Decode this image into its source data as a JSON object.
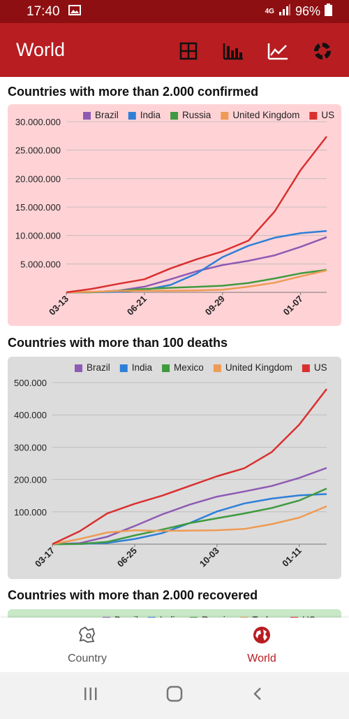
{
  "status": {
    "time": "17:40",
    "network": "4G",
    "battery": "96%"
  },
  "appbar": {
    "title": "World",
    "icons": [
      "table-icon",
      "bar-chart-icon",
      "line-chart-icon",
      "donut-chart-icon"
    ]
  },
  "sections": [
    {
      "title": "Countries with more than 2.000 confirmed"
    },
    {
      "title": "Countries with more than 100 deaths"
    },
    {
      "title": "Countries with more than 2.000 recovered"
    }
  ],
  "colors": {
    "Brazil": "#8e5bb4",
    "India": "#2f7fd8",
    "Russia": "#3f9a3f",
    "Mexico": "#3f9a3f",
    "United Kingdom": "#ee9b55",
    "Turkey": "#ee9b55",
    "US": "#d9302f",
    "card1_bg": "#ffd3d6",
    "card2_bg": "#dcdcdc",
    "card3_bg": "#c8e8c8"
  },
  "chart_data": [
    {
      "type": "line",
      "title": "Countries with more than 2.000 confirmed",
      "x_ticks": [
        "03-13",
        "06-21",
        "09-29",
        "01-07"
      ],
      "y_ticks": [
        "5.000.000",
        "10.000.000",
        "15.000.000",
        "20.000.000",
        "25.000.000",
        "30.000.000"
      ],
      "ylim": [
        0,
        30000000
      ],
      "x_points": [
        "03-13",
        "04-15",
        "05-18",
        "06-21",
        "07-24",
        "08-26",
        "09-29",
        "11-01",
        "12-04",
        "01-07",
        "01-28"
      ],
      "legend_position": "top",
      "series": [
        {
          "name": "Brazil",
          "values": [
            0,
            50000,
            300000,
            1000000,
            2300000,
            3700000,
            4800000,
            5550000,
            6500000,
            8000000,
            9700000
          ]
        },
        {
          "name": "India",
          "values": [
            0,
            10000,
            100000,
            420000,
            1300000,
            3300000,
            6200000,
            8200000,
            9600000,
            10400000,
            10800000
          ]
        },
        {
          "name": "Russia",
          "values": [
            0,
            20000,
            300000,
            600000,
            800000,
            970000,
            1170000,
            1650000,
            2450000,
            3350000,
            3950000
          ]
        },
        {
          "name": "United Kingdom",
          "values": [
            0,
            100000,
            250000,
            300000,
            300000,
            330000,
            450000,
            1000000,
            1700000,
            2800000,
            3850000
          ]
        },
        {
          "name": "US",
          "values": [
            0,
            630000,
            1500000,
            2300000,
            4200000,
            5800000,
            7200000,
            9100000,
            14200000,
            21500000,
            27400000
          ]
        }
      ]
    },
    {
      "type": "line",
      "title": "Countries with more than 100 deaths",
      "x_ticks": [
        "03-17",
        "06-25",
        "10-03",
        "01-11"
      ],
      "y_ticks": [
        "100.000",
        "200.000",
        "300.000",
        "400.000",
        "500.000"
      ],
      "ylim": [
        0,
        500000
      ],
      "x_points": [
        "03-17",
        "04-19",
        "05-22",
        "06-25",
        "07-28",
        "08-30",
        "10-03",
        "11-05",
        "12-08",
        "01-11",
        "01-28"
      ],
      "legend_position": "top",
      "series": [
        {
          "name": "Brazil",
          "values": [
            0,
            3000,
            23000,
            56000,
            92000,
            122000,
            147000,
            163000,
            180000,
            205000,
            236000
          ]
        },
        {
          "name": "India",
          "values": [
            0,
            500,
            4000,
            16000,
            34000,
            65000,
            101000,
            126000,
            141000,
            151000,
            155000
          ]
        },
        {
          "name": "Mexico",
          "values": [
            0,
            700,
            7000,
            27000,
            45000,
            65000,
            80000,
            95000,
            112000,
            135000,
            172000
          ]
        },
        {
          "name": "United Kingdom",
          "values": [
            0,
            16000,
            36000,
            43000,
            41000,
            42000,
            43000,
            47000,
            62000,
            82000,
            117000
          ]
        },
        {
          "name": "US",
          "values": [
            0,
            40000,
            95000,
            125000,
            150000,
            180000,
            210000,
            235000,
            285000,
            370000,
            480000
          ]
        }
      ]
    },
    {
      "type": "line",
      "title": "Countries with more than 2.000 recovered",
      "legend_position": "top",
      "series": [
        {
          "name": "Brazil",
          "values": []
        },
        {
          "name": "India",
          "values": []
        },
        {
          "name": "Russia",
          "values": []
        },
        {
          "name": "Turkey",
          "values": []
        },
        {
          "name": "US",
          "values": []
        }
      ]
    }
  ],
  "bottom_nav": [
    {
      "label": "Country",
      "active": false
    },
    {
      "label": "World",
      "active": true
    }
  ]
}
